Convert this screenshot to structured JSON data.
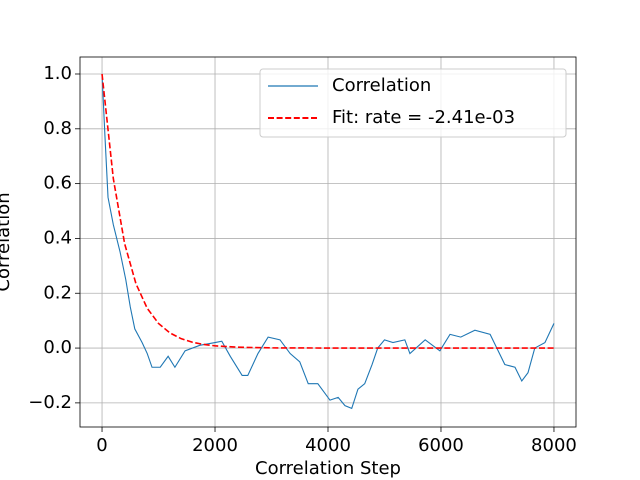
{
  "chart_data": {
    "type": "line",
    "xlabel": "Correlation Step",
    "ylabel": "Correlation",
    "xlim": [
      -390,
      8390
    ],
    "ylim": [
      -0.288,
      1.062
    ],
    "xticks": [
      0,
      2000,
      4000,
      6000,
      8000
    ],
    "yticks": [
      {
        "value": -0.2,
        "label": "−0.2"
      },
      {
        "value": 0,
        "label": "0.0"
      },
      {
        "value": 0.2,
        "label": "0.2"
      },
      {
        "value": 0.4,
        "label": "0.4"
      },
      {
        "value": 0.6,
        "label": "0.6"
      },
      {
        "value": 0.8,
        "label": "0.8"
      },
      {
        "value": 1,
        "label": "1.0"
      }
    ],
    "grid": true,
    "legend": "upper right",
    "series": [
      {
        "name": "Correlation",
        "color": "#1f77b4",
        "style": "solid",
        "x": [
          0,
          50,
          106,
          200,
          320,
          420,
          500,
          580,
          710,
          800,
          885,
          1030,
          1170,
          1290,
          1470,
          1730,
          2000,
          2120,
          2270,
          2480,
          2580,
          2760,
          2940,
          3150,
          3330,
          3500,
          3650,
          3820,
          4035,
          4180,
          4300,
          4420,
          4530,
          4650,
          4780,
          4880,
          5000,
          5150,
          5360,
          5450,
          5720,
          5980,
          6160,
          6350,
          6600,
          6870,
          7130,
          7310,
          7430,
          7540,
          7660,
          7840,
          8000
        ],
        "values": [
          1.0,
          0.78,
          0.55,
          0.45,
          0.35,
          0.25,
          0.15,
          0.07,
          0.02,
          -0.02,
          -0.07,
          -0.07,
          -0.03,
          -0.07,
          -0.01,
          0.01,
          0.02,
          0.025,
          -0.03,
          -0.1,
          -0.1,
          -0.02,
          0.04,
          0.03,
          -0.02,
          -0.05,
          -0.13,
          -0.13,
          -0.19,
          -0.18,
          -0.21,
          -0.22,
          -0.15,
          -0.13,
          -0.06,
          0.0,
          0.03,
          0.02,
          0.03,
          -0.02,
          0.03,
          -0.01,
          0.05,
          0.04,
          0.065,
          0.05,
          -0.06,
          -0.07,
          -0.12,
          -0.09,
          0.0,
          0.02,
          0.09
        ]
      },
      {
        "name": "Fit: rate = -2.41e-03",
        "color": "#ff0000",
        "style": "dashed",
        "x": [
          0,
          200,
          400,
          600,
          800,
          1000,
          1200,
          1400,
          1600,
          1800,
          2000,
          2400,
          3000,
          4000,
          5000,
          6000,
          7000,
          8000
        ],
        "values": [
          1.0,
          0.618,
          0.381,
          0.235,
          0.145,
          0.0898,
          0.0554,
          0.0343,
          0.0212,
          0.0131,
          0.0081,
          0.0031,
          0.0007,
          0.0001,
          0,
          0,
          0,
          0
        ]
      }
    ]
  }
}
